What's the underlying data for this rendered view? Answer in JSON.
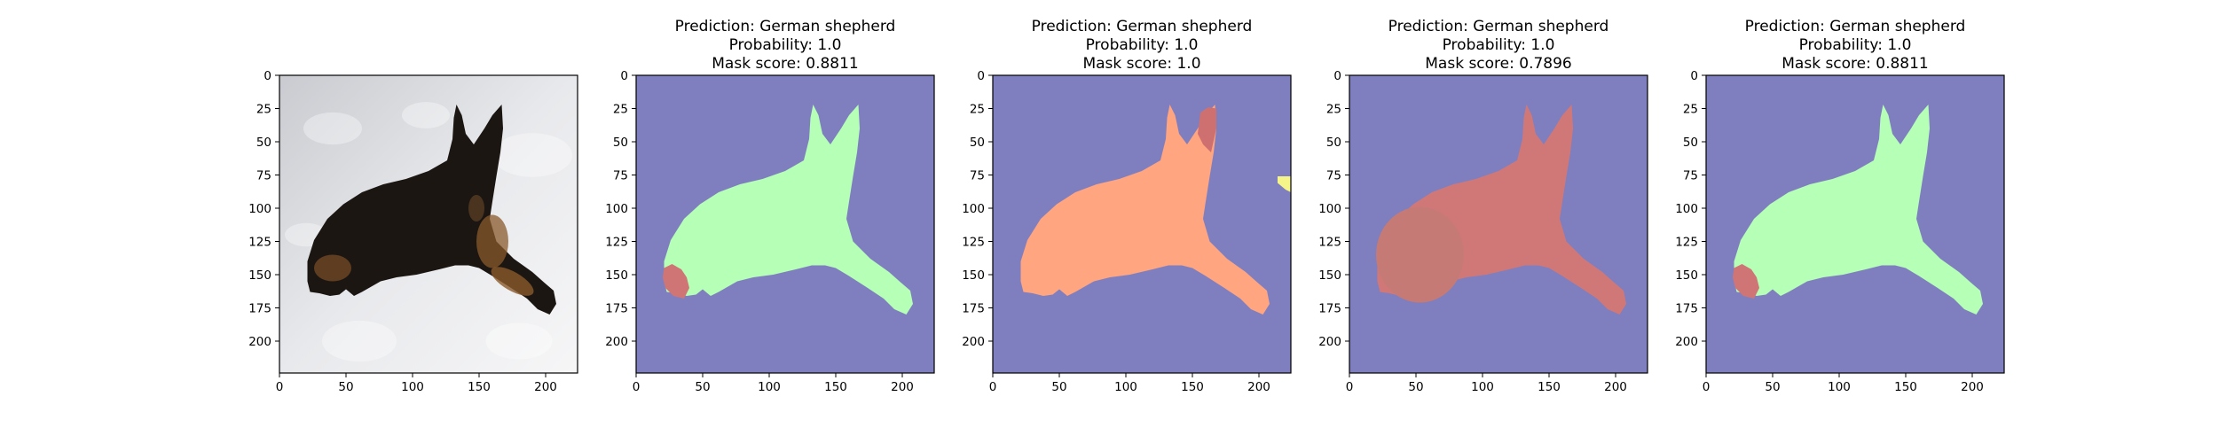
{
  "figure": {
    "background": "#ffffff"
  },
  "chart_data": [
    {
      "type": "image",
      "content": "photo of a German shepherd lying in snow",
      "title_lines": [],
      "xlim": [
        0,
        224
      ],
      "ylim": [
        224,
        0
      ],
      "xticks": [
        0,
        50,
        100,
        150,
        200
      ],
      "yticks": [
        0,
        25,
        50,
        75,
        100,
        125,
        150,
        175,
        200
      ],
      "grid": false
    },
    {
      "type": "heatmap",
      "title_lines": [
        "Prediction: German shepherd",
        "Probability: 1.0",
        "Mask score: 0.8811"
      ],
      "xlim": [
        0,
        224
      ],
      "ylim": [
        224,
        0
      ],
      "xticks": [
        0,
        50,
        100,
        150,
        200
      ],
      "yticks": [
        0,
        25,
        50,
        75,
        100,
        125,
        150,
        175,
        200
      ],
      "grid": false,
      "background_color": "#7f7fbf",
      "dog_mask_color": "#b6ffb6",
      "extra_blobs": [
        {
          "color": "#d07575",
          "where": "lower-left of body"
        }
      ]
    },
    {
      "type": "heatmap",
      "title_lines": [
        "Prediction: German shepherd",
        "Probability: 1.0",
        "Mask score: 1.0"
      ],
      "xlim": [
        0,
        224
      ],
      "ylim": [
        224,
        0
      ],
      "xticks": [
        0,
        50,
        100,
        150,
        200
      ],
      "yticks": [
        0,
        25,
        50,
        75,
        100,
        125,
        150,
        175,
        200
      ],
      "grid": false,
      "background_color": "#7f7fbf",
      "dog_mask_color": "#ffa580",
      "extra_blobs": [
        {
          "color": "#cf7070",
          "where": "right ear"
        },
        {
          "color": "#f5f58a",
          "where": "right edge"
        }
      ]
    },
    {
      "type": "heatmap",
      "title_lines": [
        "Prediction: German shepherd",
        "Probability: 1.0",
        "Mask score: 0.7896"
      ],
      "xlim": [
        0,
        224
      ],
      "ylim": [
        224,
        0
      ],
      "xticks": [
        0,
        50,
        100,
        150,
        200
      ],
      "yticks": [
        0,
        25,
        50,
        75,
        100,
        125,
        150,
        175,
        200
      ],
      "grid": false,
      "background_color": "#7f7fbf",
      "dog_mask_color": "#d07878",
      "extra_blobs": [
        {
          "color": "#c67a76",
          "where": "chest"
        }
      ]
    },
    {
      "type": "heatmap",
      "title_lines": [
        "Prediction: German shepherd",
        "Probability: 1.0",
        "Mask score: 0.8811"
      ],
      "xlim": [
        0,
        224
      ],
      "ylim": [
        224,
        0
      ],
      "xticks": [
        0,
        50,
        100,
        150,
        200
      ],
      "yticks": [
        0,
        25,
        50,
        75,
        100,
        125,
        150,
        175,
        200
      ],
      "grid": false,
      "background_color": "#7f7fbf",
      "dog_mask_color": "#b6ffb6",
      "extra_blobs": [
        {
          "color": "#d07575",
          "where": "lower-left of body"
        }
      ]
    }
  ]
}
